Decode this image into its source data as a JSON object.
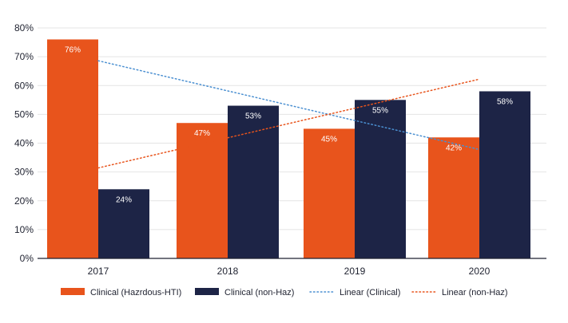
{
  "chart_data": {
    "type": "bar",
    "categories": [
      "2017",
      "2018",
      "2019",
      "2020"
    ],
    "series": [
      {
        "name": "Clinical (Hazrdous-HTI)",
        "color": "#E8541C",
        "values": [
          76,
          47,
          45,
          42
        ],
        "labels": [
          "76%",
          "47%",
          "45%",
          "42%"
        ]
      },
      {
        "name": "Clinical (non-Haz)",
        "color": "#1D2446",
        "values": [
          24,
          53,
          55,
          58
        ],
        "labels": [
          "24%",
          "53%",
          "55%",
          "58%"
        ]
      }
    ],
    "trendlines": [
      {
        "name": "Linear (Clinical)",
        "color": "#4A8FD1",
        "style": "dotted",
        "start": 68.6,
        "end": 37.8
      },
      {
        "name": "Linear (non-Haz)",
        "color": "#E8541C",
        "style": "dotted",
        "start": 31.4,
        "end": 62.2
      }
    ],
    "ylim": [
      0,
      80
    ],
    "yticks": [
      "0%",
      "10%",
      "20%",
      "30%",
      "40%",
      "50%",
      "60%",
      "70%",
      "80%"
    ],
    "grid": true,
    "legend_position": "bottom",
    "title": "",
    "xlabel": "",
    "ylabel": ""
  }
}
